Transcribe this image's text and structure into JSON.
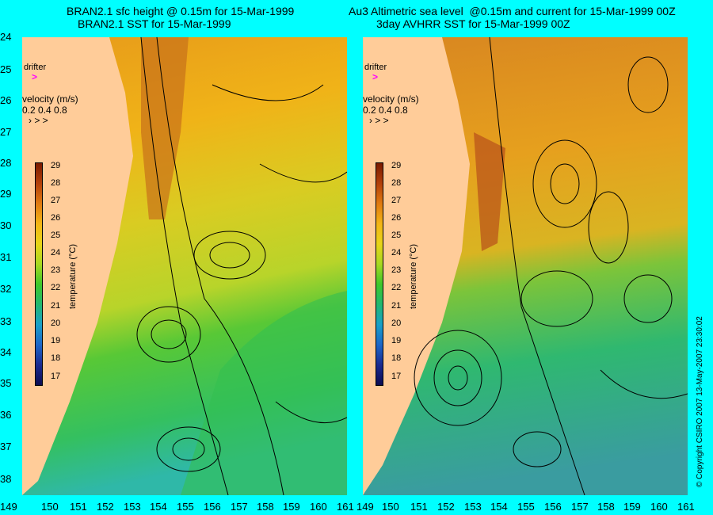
{
  "left_panel": {
    "title_line1": "BRAN2.1 sfc height @ 0.15m for 15-Mar-1999",
    "title_line2": "BRAN2.1 SST for 15-Mar-1999",
    "drifter_label": "drifter",
    "velocity_label": "velocity (m/s)",
    "velocity_values": "0.2 0.4 0.8"
  },
  "right_panel": {
    "title_line1": "Au3 Altimetric sea level  @0.15m and current for 15-Mar-1999 00Z",
    "title_line2": "3day AVHRR SST for 15-Mar-1999 00Z",
    "drifter_label": "drifter",
    "velocity_label": "velocity (m/s)",
    "velocity_values": "0.2 0.4 0.8"
  },
  "colorbar": {
    "unit_label": "temperature (°C)",
    "ticks": [
      "29",
      "28",
      "27",
      "26",
      "25",
      "24",
      "23",
      "22",
      "21",
      "20",
      "19",
      "18",
      "17"
    ]
  },
  "lat_labels": [
    "24",
    "25",
    "26",
    "27",
    "28",
    "29",
    "30",
    "31",
    "32",
    "33",
    "34",
    "35",
    "36",
    "37",
    "38"
  ],
  "lon_labels": [
    "149",
    "150",
    "151",
    "152",
    "153",
    "154",
    "155",
    "156",
    "157",
    "158",
    "159",
    "160",
    "161"
  ],
  "copyright": "© Copyright CSIRO 2007    13-May-2007 23:30:02",
  "colors": {
    "background": "#00ffff",
    "land": "#ffcc99",
    "drifter": "#ff00ff"
  }
}
